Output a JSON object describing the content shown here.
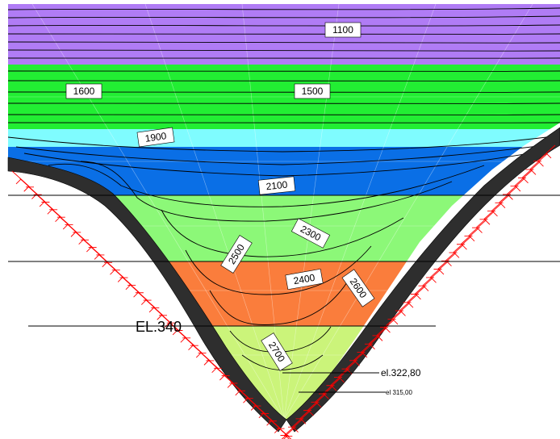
{
  "colors": {
    "band_1100": "#b07cf5",
    "band_1500": "#22ee33",
    "band_1900": "#7ffcff",
    "band_2100": "#0a6fe6",
    "band_2300": "#8cf878",
    "band_2400": "#fa7d3c",
    "band_2700": "#cbf47a",
    "rock": "#2e2e2e",
    "support": "#ff0000",
    "contour": "#000000"
  },
  "contour_labels": [
    {
      "id": "1100",
      "text": "1100"
    },
    {
      "id": "1600",
      "text": "1600"
    },
    {
      "id": "1500",
      "text": "1500"
    },
    {
      "id": "1900",
      "text": "1900"
    },
    {
      "id": "2100",
      "text": "2100"
    },
    {
      "id": "2300",
      "text": "2300"
    },
    {
      "id": "2500",
      "text": "2500"
    },
    {
      "id": "2400",
      "text": "2400"
    },
    {
      "id": "2600",
      "text": "2600"
    },
    {
      "id": "2700",
      "text": "2700"
    }
  ],
  "elevations": {
    "el340": "EL.340",
    "el322": "el.322,80",
    "el315": "el 315,00"
  }
}
